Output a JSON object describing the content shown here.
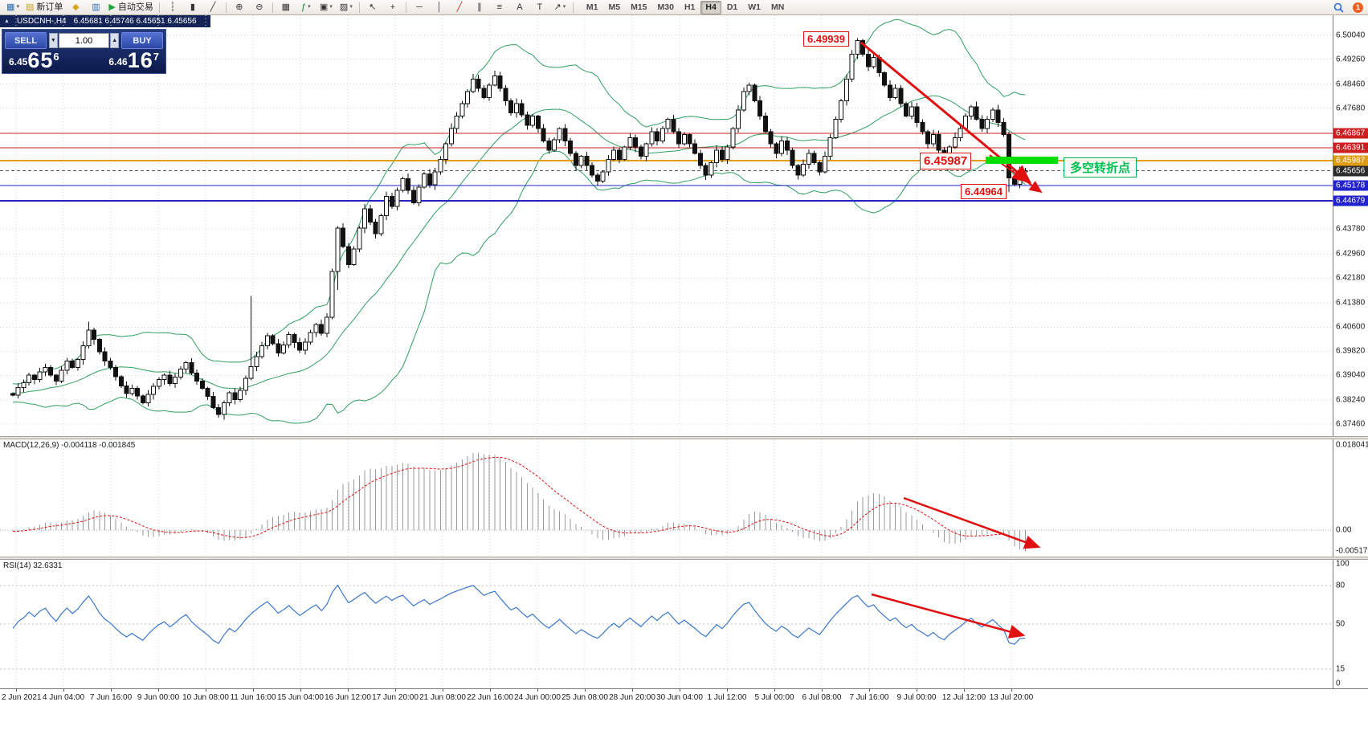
{
  "toolbar": {
    "items": [
      {
        "name": "new-chart",
        "glyph": "▦",
        "color": "#2f6db5",
        "dropdown": true
      },
      {
        "name": "new-order",
        "glyph": "▤",
        "color": "#caa01e",
        "label": "新订单"
      },
      {
        "name": "metaeditor",
        "glyph": "◆",
        "color": "#d9a520"
      },
      {
        "name": "market-watch",
        "glyph": "▥",
        "color": "#2f6db5"
      },
      {
        "name": "autotrading",
        "glyph": "▶",
        "color": "#23a33f",
        "label": "自动交易"
      },
      {
        "sep": true
      },
      {
        "name": "bar-chart",
        "glyph": "┆",
        "color": "#333333"
      },
      {
        "name": "candlestick-chart",
        "glyph": "▮",
        "color": "#333333"
      },
      {
        "name": "line-chart",
        "glyph": "╱",
        "color": "#333333"
      },
      {
        "sep": true
      },
      {
        "name": "zoom-in",
        "glyph": "⊕",
        "color": "#333333"
      },
      {
        "name": "zoom-out",
        "glyph": "⊖",
        "color": "#333333"
      },
      {
        "sep": true
      },
      {
        "name": "tile-windows",
        "glyph": "▦",
        "color": "#333333"
      },
      {
        "name": "indicators",
        "glyph": "ƒ",
        "color": "#1f7a3c",
        "dropdown": true
      },
      {
        "name": "periods",
        "glyph": "▣",
        "color": "#333333",
        "dropdown": true
      },
      {
        "name": "templates",
        "glyph": "▨",
        "color": "#333333",
        "dropdown": true
      },
      {
        "sep": true
      },
      {
        "name": "cursor",
        "glyph": "↖",
        "color": "#333333"
      },
      {
        "name": "crosshair",
        "glyph": "+",
        "color": "#333333"
      },
      {
        "sep": true
      },
      {
        "name": "horizontal-line",
        "glyph": "─",
        "color": "#333333"
      },
      {
        "name": "vertical-line",
        "glyph": "│",
        "color": "#333333"
      },
      {
        "name": "trendline",
        "glyph": "╱",
        "color": "#bb2222"
      },
      {
        "name": "equidistant-channel",
        "glyph": "∥",
        "color": "#333333"
      },
      {
        "name": "fibonacci",
        "glyph": "≡",
        "color": "#333333"
      },
      {
        "name": "text",
        "glyph": "A",
        "color": "#333333"
      },
      {
        "name": "text-label",
        "glyph": "T",
        "color": "#333333"
      },
      {
        "name": "arrows",
        "glyph": "↗",
        "color": "#333333",
        "dropdown": true
      },
      {
        "sep": true
      }
    ],
    "timeframes": [
      "M1",
      "M5",
      "M15",
      "M30",
      "H1",
      "H4",
      "D1",
      "W1",
      "MN"
    ],
    "active_timeframe": "H4",
    "notification_count": "1"
  },
  "chart": {
    "symbol_period": "USDCNH-,H4",
    "ohlc_text": "6.45681 6.45746 6.45651 6.45656",
    "trade_panel": {
      "sell_label": "SELL",
      "buy_label": "BUY",
      "volume": "1.00",
      "sell_price": {
        "prefix": "6.45",
        "big": "65",
        "sup": "6"
      },
      "buy_price": {
        "prefix": "6.46",
        "big": "16",
        "sup": "7"
      }
    },
    "price_axis_labels": [
      "6.50040",
      "6.49260",
      "6.48460",
      "6.47680",
      "6.43780",
      "6.42960",
      "6.42180",
      "6.41380",
      "6.40600",
      "6.39820",
      "6.39040",
      "6.38240",
      "6.37460"
    ],
    "price_tags": [
      {
        "text": "6.46867",
        "price": 6.46867,
        "color": "#cc2020"
      },
      {
        "text": "6.46391",
        "price": 6.46391,
        "color": "#cc2020"
      },
      {
        "text": "6.45987",
        "price": 6.45987,
        "color": "#e09c14"
      },
      {
        "text": "6.45656",
        "price": 6.45656,
        "color": "#2b2b2b"
      },
      {
        "text": "6.45178",
        "price": 6.45178,
        "color": "#2222cc"
      },
      {
        "text": "6.44679",
        "price": 6.44679,
        "color": "#2222cc"
      }
    ],
    "hlines": [
      {
        "price": 6.46867,
        "color": "#cc2020",
        "width": 1
      },
      {
        "price": 6.46391,
        "color": "#cc2020",
        "width": 1
      },
      {
        "price": 6.45987,
        "color": "#e09c14",
        "width": 2
      },
      {
        "price": 6.45656,
        "color": "#555555",
        "width": 1,
        "dash": true
      },
      {
        "price": 6.45178,
        "color": "#2222cc",
        "width": 1
      },
      {
        "price": 6.44679,
        "color": "#2222cc",
        "width": 2
      }
    ],
    "annotations": {
      "peak_price_label": "6.49939",
      "resistance_price_label": "6.45987",
      "support_price_label": "6.44964",
      "turning_point_label": "多空转折点"
    }
  },
  "macd": {
    "label": "MACD(12,26,9) -0.004118 -0.001845",
    "axis": {
      "top": "0.018041",
      "zero": "0.00",
      "bottom": "-0.005173"
    }
  },
  "rsi": {
    "label": "RSI(14) 32.6331",
    "axis": [
      {
        "text": "100",
        "value": 100
      },
      {
        "text": "80",
        "value": 80
      },
      {
        "text": "50",
        "value": 50
      },
      {
        "text": "15",
        "value": 15
      },
      {
        "text": "0",
        "value": 0
      }
    ],
    "levels": [
      80,
      50,
      15
    ]
  },
  "time_axis": {
    "labels": [
      "2 Jun 2021",
      "4 Jun 04:00",
      "7 Jun 16:00",
      "9 Jun 00:00",
      "10 Jun 08:00",
      "11 Jun 16:00",
      "15 Jun 04:00",
      "16 Jun 12:00",
      "17 Jun 20:00",
      "21 Jun 08:00",
      "22 Jun 16:00",
      "24 Jun 00:00",
      "25 Jun 08:00",
      "28 Jun 20:00",
      "30 Jun 04:00",
      "1 Jul 12:00",
      "5 Jul 00:00",
      "6 Jul 08:00",
      "7 Jul 16:00",
      "9 Jul 00:00",
      "12 Jul 12:00",
      "13 Jul 20:00"
    ]
  },
  "chart_data": {
    "type": "candlestick",
    "symbol": "USDCNH",
    "period": "H4",
    "y_range": [
      6.3718,
      6.5068
    ],
    "indicators": {
      "bollinger": {
        "period": 20,
        "deviation": 2,
        "color": "#2e9e60"
      },
      "macd": {
        "fast": 12,
        "slow": 26,
        "signal": 9,
        "histogram_color": "#9a9a9a",
        "signal_color": "#e01010"
      },
      "rsi": {
        "period": 14,
        "color": "#3a77c9"
      }
    },
    "warmup_closes": [
      6.3858,
      6.3872,
      6.385,
      6.3832,
      6.3855,
      6.387,
      6.3846,
      6.3822,
      6.384,
      6.3861,
      6.3836,
      6.3818,
      6.3832,
      6.3852,
      6.3868,
      6.3854,
      6.3836,
      6.385,
      6.3864,
      6.3845
    ],
    "closes": [
      6.384,
      6.3865,
      6.388,
      6.3905,
      6.389,
      6.3915,
      6.393,
      6.3905,
      6.3885,
      6.392,
      6.395,
      6.393,
      6.3955,
      6.4,
      6.405,
      6.402,
      6.398,
      6.395,
      6.393,
      6.39,
      6.387,
      6.3845,
      6.3862,
      6.3838,
      6.3815,
      6.3842,
      6.3868,
      6.389,
      6.3905,
      6.3878,
      6.3898,
      6.3925,
      6.3945,
      6.3912,
      6.3886,
      6.3862,
      6.3836,
      6.38,
      6.3778,
      6.3815,
      6.3848,
      6.3826,
      6.3855,
      6.3895,
      6.3932,
      6.3965,
      6.4,
      6.4032,
      6.4006,
      6.3976,
      6.4002,
      6.4036,
      6.401,
      6.3986,
      6.4012,
      6.4042,
      6.4068,
      6.404,
      6.4092,
      6.424,
      6.438,
      6.432,
      6.4262,
      6.4312,
      6.438,
      6.4442,
      6.44,
      6.4362,
      6.442,
      6.4482,
      6.445,
      6.4502,
      6.454,
      6.4502,
      6.4462,
      6.4512,
      6.4555,
      6.452,
      6.4562,
      6.4602,
      6.4652,
      6.4702,
      6.4742,
      6.4782,
      6.4822,
      6.4862,
      6.4832,
      6.4802,
      6.4842,
      6.4872,
      6.4832,
      6.4792,
      6.4752,
      6.4782,
      6.4746,
      6.4712,
      6.4742,
      6.4702,
      6.4662,
      6.4632,
      6.4666,
      6.4702,
      6.4662,
      6.4622,
      6.4582,
      6.4612,
      6.4582,
      6.4552,
      6.4532,
      6.4562,
      6.4602,
      6.4632,
      6.4602,
      6.4642,
      6.4672,
      6.4642,
      6.4612,
      6.4652,
      6.4692,
      6.4662,
      6.4702,
      6.4732,
      6.4692,
      6.4652,
      6.4682,
      6.4652,
      6.4622,
      6.4582,
      6.4552,
      6.4592,
      6.4632,
      6.4602,
      6.4642,
      6.4702,
      6.4762,
      6.4822,
      6.4842,
      6.4792,
      6.4742,
      6.4692,
      6.4652,
      6.4622,
      6.4662,
      6.4632,
      6.4582,
      6.4552,
      6.4586,
      6.4622,
      6.4592,
      6.4562,
      6.4612,
      6.4672,
      6.4732,
      6.4792,
      6.4862,
      6.4942,
      6.4986,
      6.4942,
      6.4902,
      6.4932,
      6.4882,
      6.4842,
      6.4802,
      6.4832,
      6.4782,
      6.4742,
      6.4772,
      6.4722,
      6.4692,
      6.4652,
      6.4682,
      6.4632,
      6.4602,
      6.4642,
      6.4672,
      6.4702,
      6.4742,
      6.4772,
      6.4732,
      6.4702,
      6.4732,
      6.4762,
      6.4722,
      6.4682,
      6.4542,
      6.4522,
      6.4562,
      6.45656
    ],
    "wick_overrides": {
      "14": {
        "h": 6.4078
      },
      "44": {
        "h": 6.416
      },
      "59": {
        "l": 6.4085
      },
      "60": {
        "l": 6.418
      },
      "156": {
        "h": 6.49939
      },
      "184": {
        "l": 6.44964
      },
      "187": {
        "h": 6.45746,
        "l": 6.45651
      }
    }
  }
}
